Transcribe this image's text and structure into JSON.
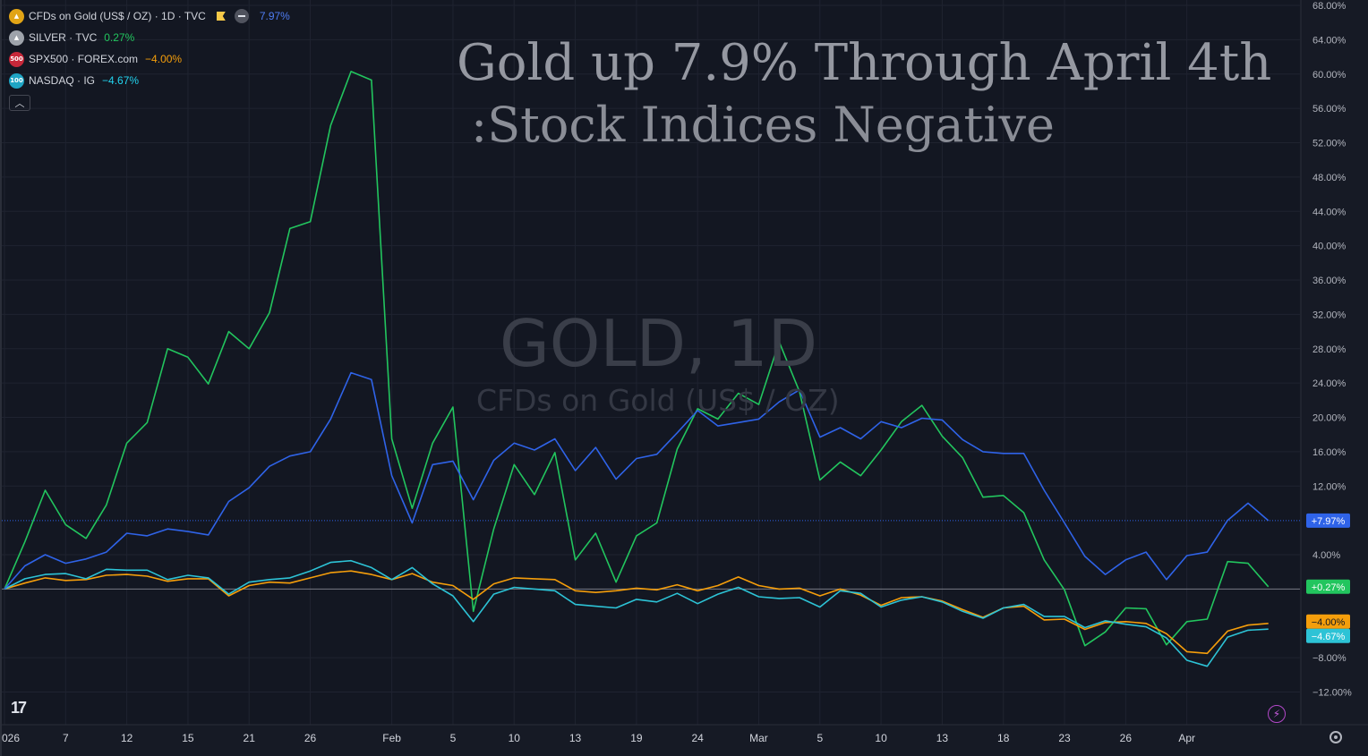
{
  "legend": [
    {
      "badge": "",
      "badge_color": "#e1a416",
      "name": "CFDs on Gold (US$ / OZ) · 1D · TVC",
      "value": "7.97%",
      "value_color": "#4f7df3",
      "extras": true
    },
    {
      "badge": "",
      "badge_color": "#9ea3ab",
      "name": "SILVER · TVC",
      "value": "0.27%",
      "value_color": "#22c55e"
    },
    {
      "badge": "500",
      "badge_color": "#c6283a",
      "name": "SPX500 · FOREX.com",
      "value": "−4.00%",
      "value_color": "#f59e0b"
    },
    {
      "badge": "100",
      "badge_color": "#1fa5c4",
      "name": "NASDAQ · IG",
      "value": "−4.67%",
      "value_color": "#22d3ee"
    }
  ],
  "annotation": {
    "line1": "Gold up 7.9% Through April 4th",
    "line2": ":Stock Indices Negative"
  },
  "watermark": {
    "symbol": "GOLD, 1D",
    "description": "CFDs on Gold (US$ / OZ)"
  },
  "logo_text": "17",
  "bolt_icon": "⚡",
  "chart_data": {
    "type": "line",
    "y_unit": "%",
    "ylim": [
      -14,
      68
    ],
    "y_ticks": [
      68,
      64,
      60,
      56,
      52,
      48,
      44,
      40,
      36,
      32,
      28,
      24,
      20,
      16,
      12,
      4,
      -8,
      -12
    ],
    "y_tick_labels": [
      "68.00%",
      "64.00%",
      "60.00%",
      "56.00%",
      "52.00%",
      "48.00%",
      "44.00%",
      "40.00%",
      "36.00%",
      "32.00%",
      "28.00%",
      "24.00%",
      "20.00%",
      "16.00%",
      "12.00%",
      "4.00%",
      "−8.00%",
      "−12.00%"
    ],
    "x_labels": [
      "026",
      "7",
      "12",
      "15",
      "21",
      "26",
      "Feb",
      "5",
      "10",
      "13",
      "19",
      "24",
      "Mar",
      "5",
      "10",
      "13",
      "18",
      "23",
      "26",
      "Apr"
    ],
    "x_label_sessions": [
      0,
      3,
      6,
      9,
      12,
      15,
      19,
      22,
      25,
      28,
      31,
      34,
      37,
      40,
      43,
      46,
      49,
      52,
      55,
      58
    ],
    "baseline": 0,
    "zero_line_label": "+0.27%",
    "series": [
      {
        "name": "CFDs on Gold (US$ / OZ)",
        "color": "#2f63e8",
        "last_label": "+7.97%",
        "price_line": 7.97,
        "values": [
          0,
          2.7,
          4,
          3,
          3.5,
          4.3,
          6.5,
          6.2,
          7,
          6.7,
          6.3,
          10.2,
          11.8,
          14.3,
          15.5,
          16,
          19.8,
          25.2,
          24.4,
          13.2,
          7.7,
          14.5,
          14.9,
          10.4,
          15,
          17,
          16.2,
          17.5,
          13.8,
          16.5,
          12.8,
          15.2,
          15.7,
          18.2,
          20.8,
          19,
          19.4,
          19.8,
          21.8,
          23.2,
          17.7,
          18.8,
          17.5,
          19.5,
          18.8,
          19.9,
          19.7,
          17.4,
          16,
          15.8,
          15.8,
          11.5,
          7.7,
          3.8,
          1.7,
          3.4,
          4.3,
          1.1,
          3.9,
          4.3,
          8,
          10,
          7.97
        ]
      },
      {
        "name": "SILVER",
        "color": "#22c55e",
        "last_label": "+0.27%",
        "values": [
          0,
          5.5,
          11.5,
          7.5,
          5.9,
          9.8,
          17,
          19.4,
          28,
          27,
          23.9,
          30,
          28,
          32.2,
          42,
          42.8,
          54,
          60.3,
          59.3,
          17.5,
          9.4,
          17,
          21.2,
          -2.6,
          7,
          14.5,
          11,
          15.9,
          3.4,
          6.5,
          0.8,
          6.2,
          7.7,
          16.3,
          21,
          19.8,
          22.8,
          21.5,
          28.8,
          23,
          12.7,
          14.8,
          13.2,
          16.2,
          19.5,
          21.4,
          17.8,
          15.3,
          10.7,
          10.9,
          8.9,
          3.4,
          -0.1,
          -6.6,
          -5,
          -2.2,
          -2.3,
          -6.5,
          -3.8,
          -3.5,
          3.2,
          3,
          0.27
        ]
      },
      {
        "name": "SPX500",
        "color": "#f59e0b",
        "last_label": "−4.00%",
        "values": [
          0,
          0.7,
          1.3,
          1,
          1.1,
          1.6,
          1.7,
          1.5,
          0.9,
          1.2,
          1.2,
          -0.8,
          0.4,
          0.8,
          0.7,
          1.3,
          1.9,
          2.1,
          1.7,
          1.1,
          1.8,
          0.8,
          0.4,
          -1.2,
          0.6,
          1.3,
          1.2,
          1.1,
          -0.2,
          -0.4,
          -0.2,
          0.1,
          -0.1,
          0.5,
          -0.2,
          0.4,
          1.4,
          0.4,
          0,
          0.1,
          -0.8,
          0,
          -0.7,
          -1.9,
          -1,
          -0.9,
          -1.4,
          -2.4,
          -3.3,
          -2.2,
          -2,
          -3.6,
          -3.5,
          -4.7,
          -3.9,
          -3.8,
          -4,
          -5.2,
          -7.3,
          -7.5,
          -4.9,
          -4.2,
          -4.0
        ]
      },
      {
        "name": "NASDAQ",
        "color": "#2dc3d6",
        "last_label": "−4.67%",
        "values": [
          0,
          1.2,
          1.7,
          1.8,
          1.2,
          2.3,
          2.2,
          2.2,
          1.1,
          1.6,
          1.3,
          -0.6,
          0.8,
          1.1,
          1.3,
          2.1,
          3.1,
          3.3,
          2.5,
          1.1,
          2.5,
          0.6,
          -0.8,
          -3.8,
          -0.6,
          0.2,
          0,
          -0.2,
          -1.8,
          -2,
          -2.2,
          -1.2,
          -1.5,
          -0.5,
          -1.7,
          -0.6,
          0.2,
          -0.9,
          -1.1,
          -1,
          -2.1,
          -0.2,
          -0.5,
          -2.1,
          -1.3,
          -0.9,
          -1.5,
          -2.6,
          -3.4,
          -2.2,
          -1.8,
          -3.2,
          -3.2,
          -4.5,
          -3.7,
          -4.1,
          -4.4,
          -5.7,
          -8.3,
          -9,
          -5.6,
          -4.8,
          -4.67
        ]
      }
    ]
  }
}
